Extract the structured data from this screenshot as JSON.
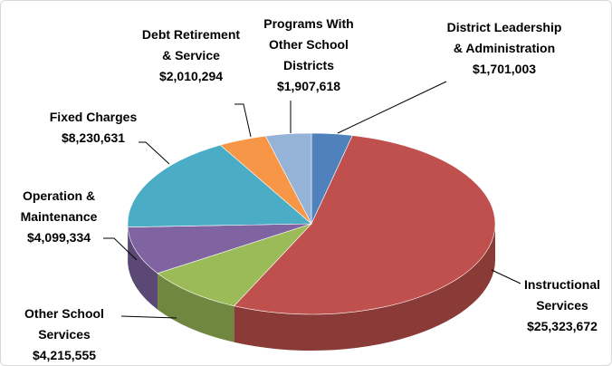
{
  "chart_data": {
    "type": "pie",
    "categories": [
      "District Leadership & Administration",
      "Instructional Services",
      "Other School Services",
      "Operation & Maintenance",
      "Fixed Charges",
      "Debt Retirement & Service",
      "Programs With Other School Districts"
    ],
    "values": [
      1701003,
      25323672,
      4215555,
      4099334,
      8230631,
      2010294,
      1907618
    ],
    "value_labels": [
      "$1,701,003",
      "$25,323,672",
      "$4,215,555",
      "$4,099,334",
      "$8,230,631",
      "$2,010,294",
      "$1,907,618"
    ],
    "colors": [
      "#4f81bd",
      "#c0504d",
      "#9bbb59",
      "#8064a2",
      "#4bacc6",
      "#f79646",
      "#95b3d7"
    ]
  }
}
